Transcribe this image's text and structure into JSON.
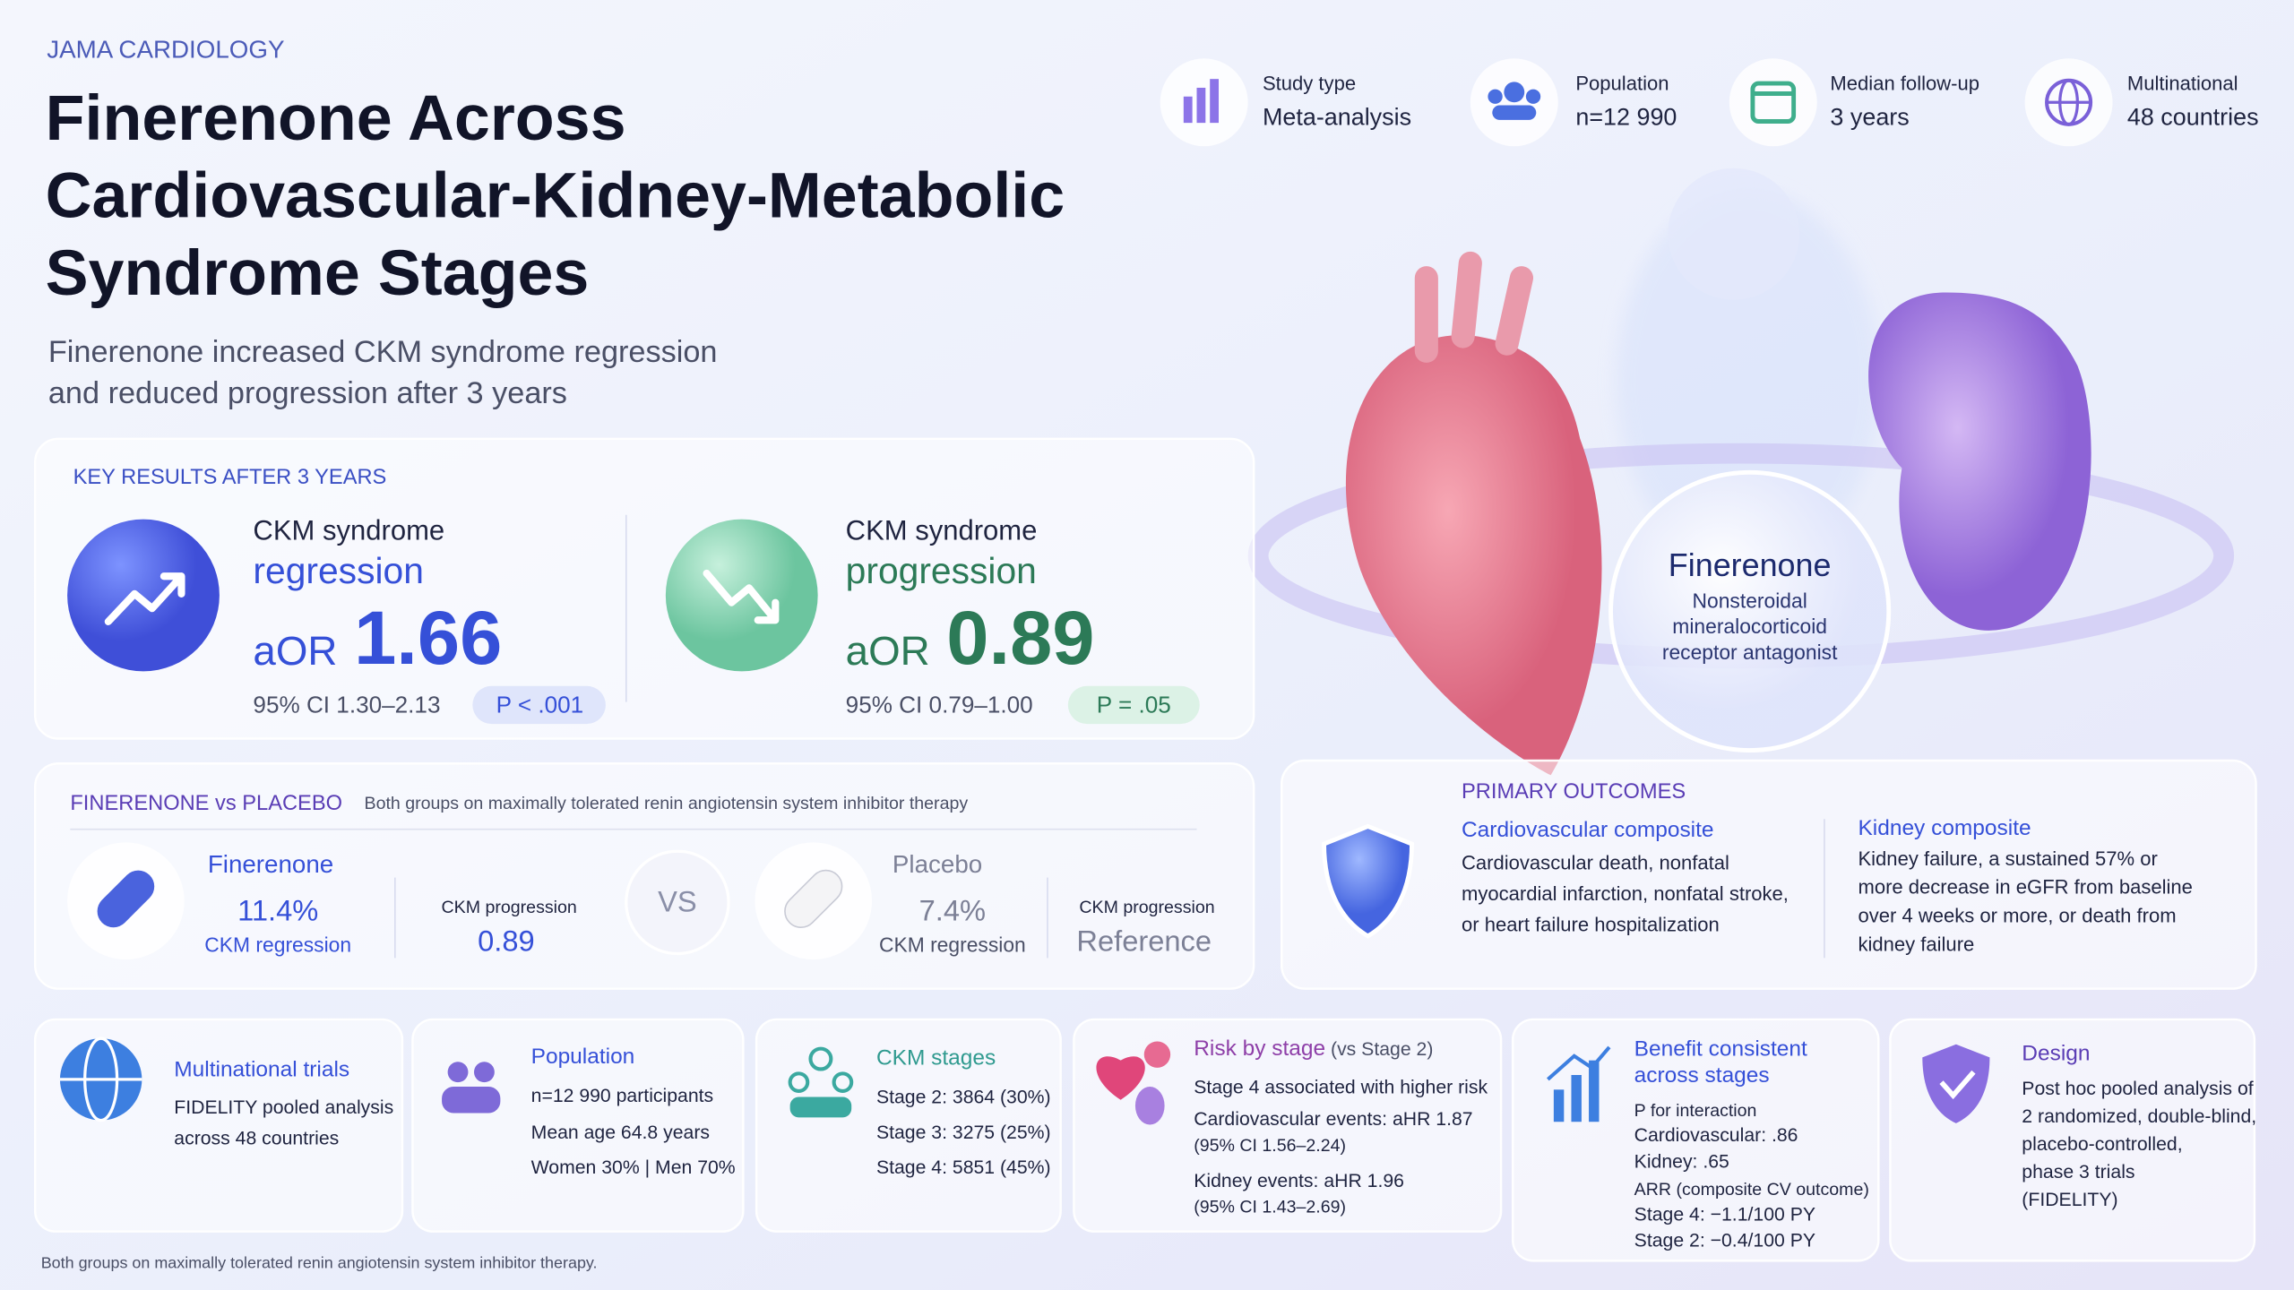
{
  "header": {
    "journal": "JAMA CARDIOLOGY",
    "title_lines": [
      "Finerenone Across",
      "Cardiovascular-Kidney-Metabolic",
      "Syndrome Stages"
    ],
    "subtitle_lines": [
      "Finerenone increased CKM syndrome regression",
      "and reduced progression after 3 years"
    ]
  },
  "stats": [
    {
      "label": "Study type",
      "value": "Meta-analysis"
    },
    {
      "label": "Population",
      "value": "n=12 990"
    },
    {
      "label": "Median follow-up",
      "value": "3 years"
    },
    {
      "label": "Multinational",
      "value": "48 countries"
    }
  ],
  "key_results": {
    "heading": "KEY RESULTS AFTER 3 YEARS",
    "items": [
      {
        "line1": "CKM syndrome",
        "line2": "regression",
        "measure": "aOR",
        "estimate": "1.66",
        "ci": "95% CI 1.30–2.13",
        "p": "P < .001"
      },
      {
        "line1": "CKM syndrome",
        "line2": "progression",
        "measure": "aOR",
        "estimate": "0.89",
        "ci": "95% CI 0.79–1.00",
        "p": "P = .05"
      }
    ]
  },
  "illustration": {
    "name": "Finerenone",
    "desc_lines": [
      "Nonsteroidal",
      "mineralocorticoid",
      "receptor antagonist"
    ]
  },
  "comparison": {
    "heading": "FINERENONE vs PLACEBO",
    "note": "Both groups on maximally tolerated renin angiotensin system inhibitor therapy",
    "vs": "VS",
    "arms": [
      {
        "name": "Finerenone",
        "rate": "11.4%",
        "rate_label": "CKM regression",
        "prog_label": "CKM progression",
        "prog_value": "0.89"
      },
      {
        "name": "Placebo",
        "rate": "7.4%",
        "rate_label": "CKM regression",
        "prog_label": "CKM progression",
        "prog_value": "Reference"
      }
    ]
  },
  "outcomes": {
    "heading": "PRIMARY OUTCOMES",
    "items": [
      {
        "title": "Cardiovascular composite",
        "lines": [
          "Cardiovascular death, nonfatal",
          "myocardial infarction, nonfatal stroke,",
          "or heart failure hospitalization"
        ]
      },
      {
        "title": "Kidney composite",
        "lines": [
          "Kidney failure, a sustained 57% or",
          "more decrease in eGFR from baseline",
          "over 4 weeks or more, or death from",
          "kidney failure"
        ]
      }
    ]
  },
  "cards": [
    {
      "title": "Multinational trials",
      "lines": [
        "FIDELITY pooled analysis",
        "across 48 countries"
      ]
    },
    {
      "title": "Population",
      "lines": [
        "n=12 990 participants",
        "Mean age 64.8 years",
        "Women 30%  |  Men 70%"
      ]
    },
    {
      "title": "CKM stages",
      "lines": [
        "Stage 2: 3864 (30%)",
        "Stage 3: 3275 (25%)",
        "Stage 4: 5851 (45%)"
      ]
    },
    {
      "title": "Risk by stage",
      "title_note": "(vs Stage 2)",
      "lines": [
        "Stage 4 associated with higher risk",
        "Cardiovascular events: aHR 1.87",
        "(95% CI 1.56–2.24)",
        "Kidney events: aHR 1.96",
        "(95% CI 1.43–2.69)"
      ]
    },
    {
      "title_lines": [
        "Benefit consistent",
        "across stages"
      ],
      "lines": [
        "P for interaction",
        "Cardiovascular: .86",
        "Kidney: .65",
        "ARR (composite CV outcome)",
        "Stage 4: −1.1/100 PY",
        "Stage 2: −0.4/100 PY"
      ]
    },
    {
      "title": "Design",
      "lines": [
        "Post hoc pooled analysis of",
        "2 randomized, double-blind,",
        "placebo-controlled,",
        "phase 3 trials",
        "(FIDELITY)"
      ]
    }
  ],
  "footnote": "Both groups on maximally tolerated renin angiotensin system inhibitor therapy."
}
